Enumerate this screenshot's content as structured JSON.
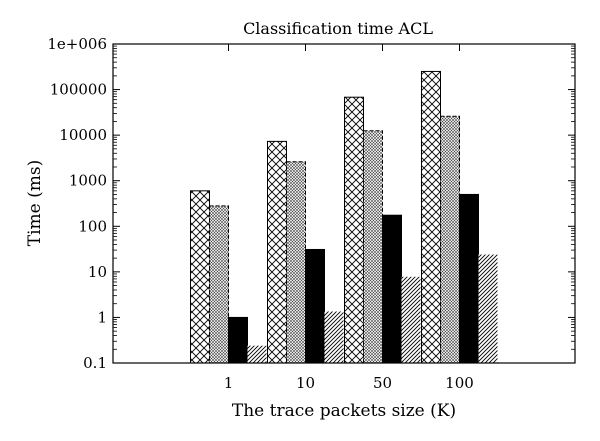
{
  "chart_data": {
    "type": "bar",
    "title": "Classification time ACL",
    "xlabel": "The trace packets size (K)",
    "ylabel": "Time (ms)",
    "y_scale": "log",
    "ylim": [
      0.1,
      1000000
    ],
    "y_tick_labels": [
      "0.1",
      "1",
      "10",
      "100",
      "1000",
      "10000",
      "100000",
      "1e+006"
    ],
    "categories": [
      "1",
      "10",
      "50",
      "100"
    ],
    "grid": false,
    "legend": "none",
    "series": [
      {
        "pattern": "crosshatch-diagonal",
        "color": "#000000",
        "values": [
          600,
          7300,
          68000,
          250000
        ]
      },
      {
        "pattern": "dense-crosshatch",
        "color": "#000000",
        "values": [
          280,
          2600,
          12500,
          26000
        ]
      },
      {
        "pattern": "solid",
        "color": "#000000",
        "values": [
          1.0,
          31,
          175,
          500
        ]
      },
      {
        "pattern": "diagonal-hatch",
        "color": "#000000",
        "values": [
          0.24,
          1.35,
          7.8,
          24
        ]
      }
    ]
  }
}
